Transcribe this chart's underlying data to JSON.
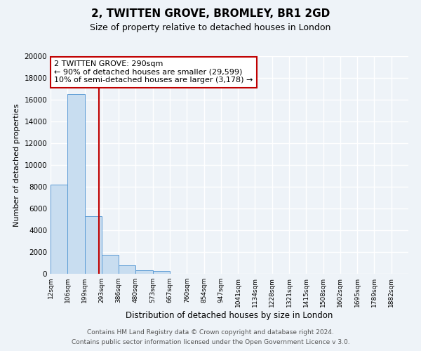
{
  "title": "2, TWITTEN GROVE, BROMLEY, BR1 2GD",
  "subtitle": "Size of property relative to detached houses in London",
  "xlabel": "Distribution of detached houses by size in London",
  "ylabel": "Number of detached properties",
  "bin_labels": [
    "12sqm",
    "106sqm",
    "199sqm",
    "293sqm",
    "386sqm",
    "480sqm",
    "573sqm",
    "667sqm",
    "760sqm",
    "854sqm",
    "947sqm",
    "1041sqm",
    "1134sqm",
    "1228sqm",
    "1321sqm",
    "1415sqm",
    "1508sqm",
    "1602sqm",
    "1695sqm",
    "1789sqm",
    "1882sqm"
  ],
  "bar_values": [
    8200,
    16500,
    5300,
    1750,
    750,
    300,
    270,
    0,
    0,
    0,
    0,
    0,
    0,
    0,
    0,
    0,
    0,
    0,
    0,
    0,
    0
  ],
  "bar_color": "#c8ddf0",
  "bar_edge_color": "#5b9bd5",
  "vline_x": 2.85,
  "vline_color": "#c00000",
  "ylim": [
    0,
    20000
  ],
  "yticks": [
    0,
    2000,
    4000,
    6000,
    8000,
    10000,
    12000,
    14000,
    16000,
    18000,
    20000
  ],
  "annotation_title": "2 TWITTEN GROVE: 290sqm",
  "annotation_line1": "← 90% of detached houses are smaller (29,599)",
  "annotation_line2": "10% of semi-detached houses are larger (3,178) →",
  "annotation_box_color": "#ffffff",
  "annotation_box_edge": "#c00000",
  "footer_line1": "Contains HM Land Registry data © Crown copyright and database right 2024.",
  "footer_line2": "Contains public sector information licensed under the Open Government Licence v 3.0.",
  "bg_color": "#eef3f8",
  "plot_bg_color": "#eef3f8",
  "grid_color": "#ffffff",
  "figwidth": 6.0,
  "figheight": 5.0,
  "dpi": 100
}
